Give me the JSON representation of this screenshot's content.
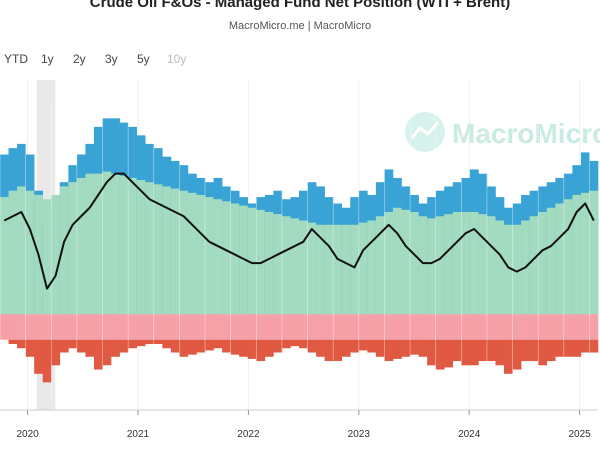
{
  "title": "Crude Oil F&Os - Managed Fund Net Position (WTI + Brent)",
  "subtitle": "MacroMicro.me | MacroMicro",
  "range_tabs": [
    {
      "label": "YTD",
      "enabled": true
    },
    {
      "label": "1y",
      "enabled": true
    },
    {
      "label": "2y",
      "enabled": true
    },
    {
      "label": "3y",
      "enabled": true
    },
    {
      "label": "5y",
      "enabled": true
    },
    {
      "label": "10y",
      "enabled": false
    }
  ],
  "watermark": {
    "text": "MacroMicro",
    "icon": "macromicro-logo-icon"
  },
  "colors": {
    "long_green": "#a3dbc1",
    "long_blue": "#3aa3d6",
    "short_pink": "#f6a0a8",
    "short_red": "#e05a43",
    "net_line": "#111111",
    "shaded_band": "#e9e9e9"
  },
  "chart_data": {
    "type": "bar",
    "xlabels": [
      "2020",
      "2021",
      "2022",
      "2023",
      "2024",
      "2025"
    ],
    "xrange": [
      "2019-10",
      "2025-03"
    ],
    "shaded_period": [
      "2020-02",
      "2020-04"
    ],
    "series": [
      {
        "role": "long-green",
        "values": [
          55,
          58,
          60,
          58,
          56,
          54,
          56,
          60,
          62,
          64,
          66,
          66,
          67,
          66,
          65,
          64,
          63,
          62,
          61,
          60,
          59,
          58,
          57,
          56,
          55,
          54,
          53,
          52,
          51,
          50,
          49,
          48,
          47,
          46,
          45,
          44,
          43,
          42,
          42,
          42,
          42,
          42,
          43,
          44,
          46,
          48,
          50,
          49,
          48,
          46,
          45,
          46,
          47,
          48,
          48,
          48,
          47,
          46,
          44,
          42,
          42,
          44,
          46,
          48,
          50,
          52,
          54,
          56,
          57,
          58
        ]
      },
      {
        "role": "long-blue",
        "values": [
          75,
          78,
          80,
          75,
          58,
          45,
          50,
          62,
          70,
          75,
          80,
          88,
          92,
          92,
          90,
          88,
          84,
          80,
          78,
          74,
          72,
          70,
          66,
          64,
          62,
          64,
          60,
          58,
          55,
          52,
          55,
          56,
          58,
          54,
          55,
          58,
          62,
          60,
          55,
          52,
          50,
          55,
          58,
          56,
          62,
          68,
          64,
          60,
          56,
          52,
          55,
          58,
          60,
          62,
          64,
          68,
          66,
          60,
          55,
          50,
          52,
          56,
          58,
          60,
          62,
          64,
          66,
          70,
          76,
          72
        ]
      },
      {
        "role": "short-red",
        "values": [
          -12,
          -14,
          -16,
          -20,
          -28,
          -32,
          -24,
          -18,
          -16,
          -18,
          -20,
          -26,
          -24,
          -20,
          -18,
          -16,
          -15,
          -14,
          -14,
          -16,
          -18,
          -20,
          -19,
          -18,
          -17,
          -16,
          -18,
          -19,
          -20,
          -21,
          -22,
          -20,
          -18,
          -16,
          -15,
          -16,
          -18,
          -20,
          -22,
          -22,
          -20,
          -18,
          -17,
          -18,
          -20,
          -22,
          -21,
          -20,
          -19,
          -20,
          -24,
          -26,
          -25,
          -22,
          -24,
          -24,
          -22,
          -22,
          -24,
          -28,
          -26,
          -22,
          -22,
          -24,
          -22,
          -20,
          -20,
          -20,
          -18,
          -18
        ]
      },
      {
        "role": "net-line",
        "values": [
          44,
          46,
          48,
          40,
          28,
          12,
          18,
          34,
          42,
          46,
          50,
          56,
          62,
          66,
          66,
          62,
          58,
          54,
          52,
          50,
          48,
          46,
          42,
          38,
          34,
          32,
          30,
          28,
          26,
          24,
          24,
          26,
          28,
          30,
          32,
          34,
          40,
          36,
          32,
          26,
          24,
          22,
          30,
          34,
          38,
          42,
          38,
          32,
          28,
          24,
          24,
          26,
          30,
          34,
          38,
          40,
          36,
          32,
          28,
          22,
          20,
          22,
          26,
          30,
          32,
          36,
          40,
          48,
          52,
          44
        ]
      }
    ],
    "ylim": [
      -45,
      110
    ],
    "grid": true,
    "legend": "none"
  }
}
